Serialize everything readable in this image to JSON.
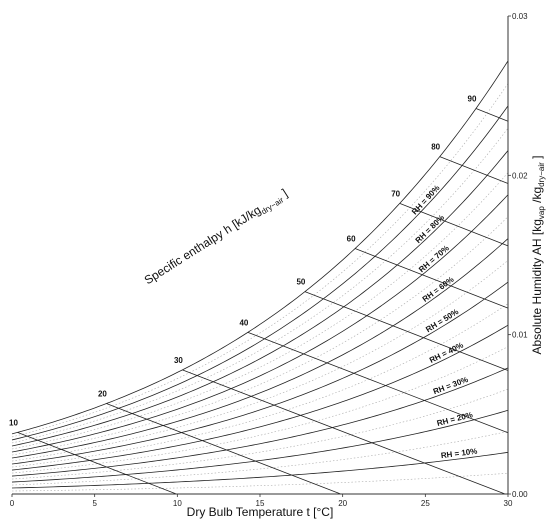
{
  "chart_data": {
    "type": "line",
    "title": "",
    "xlabel": "Dry Bulb Temperature t [°C]",
    "ylabel": {
      "main": "Absolute Humidity AH [kg",
      "sub1": "vap",
      "mid": " /kg",
      "sub2": "dry−air",
      "end": " ]"
    },
    "enthalpy_label": {
      "main": "Specific enthalpy h [kJ/kg",
      "sub": "dry−air",
      "end": " ]"
    },
    "xlim": [
      0,
      30
    ],
    "ylim": [
      0,
      0.03
    ],
    "x_ticks": [
      "0",
      "5",
      "10",
      "15",
      "20",
      "25",
      "30"
    ],
    "y_ticks": [
      "0.00",
      "0.01",
      "0.02",
      "0.03"
    ],
    "pressure_kpa": 101.325,
    "rh_series": [
      {
        "name": "RH = 10%",
        "rh": 0.1
      },
      {
        "name": "RH = 20%",
        "rh": 0.2
      },
      {
        "name": "RH = 30%",
        "rh": 0.3
      },
      {
        "name": "RH = 40%",
        "rh": 0.4
      },
      {
        "name": "RH = 50%",
        "rh": 0.5
      },
      {
        "name": "RH = 60%",
        "rh": 0.6
      },
      {
        "name": "RH = 70%",
        "rh": 0.7
      },
      {
        "name": "RH = 80%",
        "rh": 0.8
      },
      {
        "name": "RH = 90%",
        "rh": 0.9
      },
      {
        "name": "",
        "rh": 1.0
      }
    ],
    "enthalpy_lines": [
      {
        "label": "10",
        "h": 10
      },
      {
        "label": "20",
        "h": 20
      },
      {
        "label": "30",
        "h": 30
      },
      {
        "label": "40",
        "h": 40
      },
      {
        "label": "50",
        "h": 50
      },
      {
        "label": "60",
        "h": 60
      },
      {
        "label": "70",
        "h": 70
      },
      {
        "label": "80",
        "h": 80
      },
      {
        "label": "90",
        "h": 90
      }
    ],
    "grid": false
  }
}
